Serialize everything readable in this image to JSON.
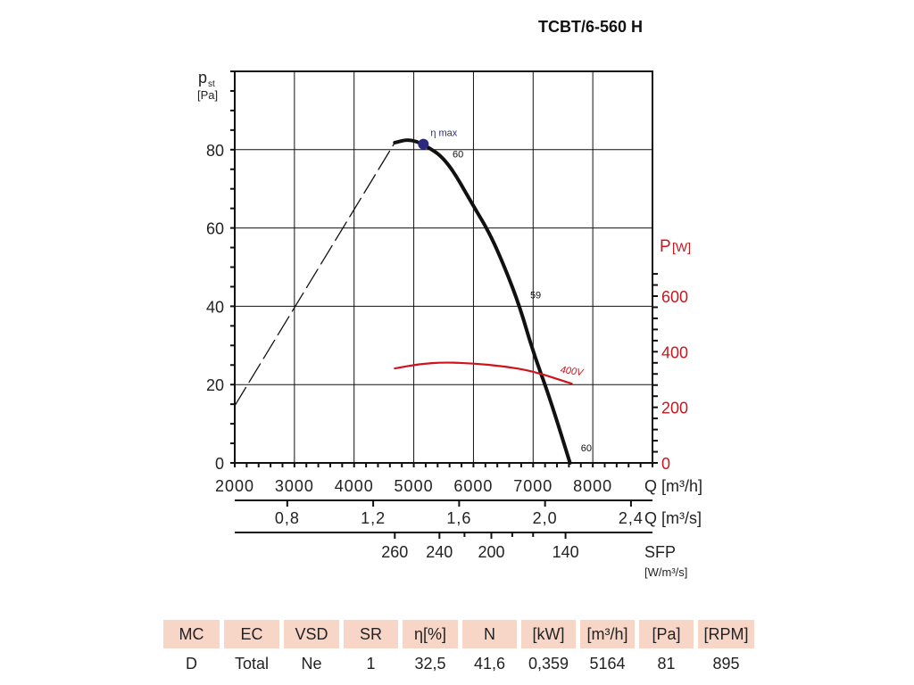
{
  "title": "TCBT/6-560 H",
  "chart_data": {
    "type": "line",
    "title": "TCBT/6-560 H",
    "xlabel": "Q [m³/h]",
    "ylabel_main": "p",
    "ylabel_sub": "st",
    "ylabel_unit": "[Pa]",
    "y2label": "P",
    "y2label_unit": "[W]",
    "xlim": [
      2000,
      9000
    ],
    "ylim": [
      0,
      100
    ],
    "y2lim": [
      0,
      1400
    ],
    "grid": true,
    "x_ticks": [
      2000,
      3000,
      4000,
      5000,
      6000,
      7000,
      8000
    ],
    "x_tick_labels": [
      "2000",
      "3000",
      "4000",
      "5000",
      "6000",
      "7000",
      "8000"
    ],
    "y_ticks": [
      0,
      20,
      40,
      60,
      80
    ],
    "y_tick_labels": [
      "0",
      "20",
      "40",
      "60",
      "80"
    ],
    "y2_ticks": [
      0,
      200,
      400,
      600
    ],
    "y2_tick_labels": [
      "0",
      "200",
      "400",
      "600"
    ],
    "q_m3s_axis": {
      "label": "Q [m³/s]",
      "ticks": [
        0.8,
        1.2,
        1.6,
        2.0,
        2.4
      ],
      "tick_labels": [
        "0,8",
        "1,2",
        "1,6",
        "2,0",
        "2,4"
      ]
    },
    "sfp_axis": {
      "label": "SFP",
      "unit": "[W/m³/s]",
      "ticks_q": [
        4682,
        5430,
        6300,
        7543
      ],
      "tick_labels": [
        "260",
        "240",
        "200",
        "140"
      ]
    },
    "series": [
      {
        "name": "pressure-unstable (dashed)",
        "axis": "left",
        "style": "dashed",
        "color": "#111111",
        "x": [
          2000,
          4682
        ],
        "y": [
          14.6,
          81.8
        ]
      },
      {
        "name": "pressure",
        "axis": "left",
        "style": "solid",
        "color": "#111111",
        "x": [
          4682,
          4920,
          5161,
          5551,
          6000,
          6270,
          6524,
          6779,
          7000,
          7273,
          7618
        ],
        "y": [
          81.8,
          82.7,
          81.4,
          77.5,
          65.6,
          58.7,
          50,
          39.8,
          28.3,
          16.9,
          0
        ]
      },
      {
        "name": "400V",
        "axis": "right",
        "style": "solid",
        "color": "#d0131b",
        "x": [
          4682,
          5100,
          5506,
          6000,
          6500,
          7000,
          7648
        ],
        "y": [
          340,
          356,
          362,
          358,
          348,
          330,
          285
        ]
      }
    ],
    "annotations": [
      {
        "text": "η max",
        "x": 5161,
        "y": 81.4,
        "color": "#2b2a7e"
      },
      {
        "text": "60",
        "x": 5650,
        "y": 78
      },
      {
        "text": "59",
        "x": 6950,
        "y": 42
      },
      {
        "text": "60",
        "x": 7800,
        "y": 3
      },
      {
        "text": "400V",
        "x": 7450,
        "y": 325,
        "axis": "right",
        "color": "#d0131b"
      }
    ]
  },
  "table": {
    "headers": [
      "MC",
      "EC",
      "VSD",
      "SR",
      "η[%]",
      "N",
      "[kW]",
      "[m³/h]",
      "[Pa]",
      "[RPM]"
    ],
    "values": [
      "D",
      "Total",
      "Ne",
      "1",
      "32,5",
      "41,6",
      "0,359",
      "5164",
      "81",
      "895"
    ],
    "header_bg": "#f7d6c8"
  }
}
